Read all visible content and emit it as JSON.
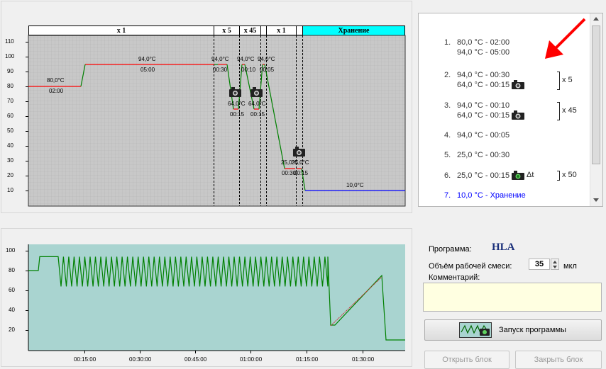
{
  "top_chart": {
    "segments": [
      "x 1",
      "x 5",
      "x 45",
      "",
      "x 1",
      "",
      "Хранение"
    ],
    "y_ticks": [
      10,
      20,
      30,
      40,
      50,
      60,
      70,
      80,
      90,
      100,
      110
    ],
    "labels": {
      "s1_temp": "80,0°C",
      "s1_time": "02:00",
      "s2_temp": "94,0°C",
      "s2_time": "05:00",
      "s3a_temp": "94,0°C",
      "s3a_time": "00:30",
      "s3b_temp": "64,0°C",
      "s3b_time": "00:15",
      "s4a_temp": "94,0°C",
      "s4a_time": "00:10",
      "s4b_temp": "64,0°C",
      "s4b_time": "00:15",
      "s5_temp": "94,0°C",
      "s5_time": "00:05",
      "s6_temp": "25,0°C",
      "s6_time": "00:30",
      "s7_temp": "25,0°C",
      "s7_time": "00:15",
      "s8_temp": "10,0°C"
    }
  },
  "steps": [
    {
      "num": "1.",
      "l1": "80,0 °C  -  02:00",
      "l2": "94,0 °C  -  05:00"
    },
    {
      "num": "2.",
      "l1": "94,0 °C  -  00:30",
      "l2": "64,0 °C  -  00:15"
    },
    {
      "num": "3.",
      "l1": "94,0 °C  -  00:10",
      "l2": "64,0 °C  -  00:15"
    },
    {
      "num": "4.",
      "l1": "94,0 °C  -  00:05",
      "l2": ""
    },
    {
      "num": "5.",
      "l1": "25,0 °C  -  00:30",
      "l2": ""
    },
    {
      "num": "6.",
      "l1": "25,0 °C  -  00:15",
      "l2": ""
    },
    {
      "num": "7.",
      "l1": "10,0 °C  -  Хранение",
      "l2": ""
    }
  ],
  "repeats": {
    "r2": "x 5",
    "r3": "x 45",
    "r6": "x 50",
    "delta": "Δt"
  },
  "bottom_chart": {
    "y_ticks": [
      20,
      40,
      60,
      80,
      100
    ],
    "x_ticks": [
      "00:15:00",
      "00:30:00",
      "00:45:00",
      "01:00:00",
      "01:15:00",
      "01:30:00"
    ]
  },
  "program": {
    "program_label": "Программа:",
    "program_name": "HLA",
    "volume_label": "Объём рабочей смеси:",
    "volume_value": "35",
    "volume_unit": "мкл",
    "comment_label": "Комментарий:",
    "comment_value": "",
    "start_button": "Запуск программы",
    "open_button": "Открыть блок",
    "close_button": "Закрыть блок"
  },
  "colors": {
    "plot_bg": "#c8c8c8",
    "bottom_bg": "#a9d4d0",
    "hold": "#ff0000",
    "ramp": "#008000",
    "storage": "#0000ff",
    "storage_hdr": "#00ffff",
    "arrow": "#ff0000"
  }
}
